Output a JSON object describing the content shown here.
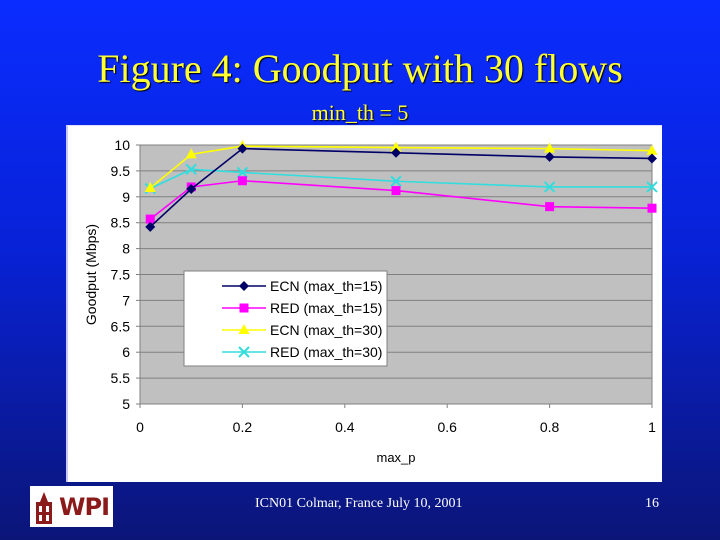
{
  "slide": {
    "title": "Figure 4: Goodput with 30 flows",
    "subtitle": "min_th = 5",
    "footer": "ICN01 Colmar, France  July 10, 2001",
    "page_number": "16",
    "logo_text": "WPI",
    "colors": {
      "background": "#0822d8",
      "title": "#ffff33",
      "plot_bg": "#c0c0c0"
    }
  },
  "chart_data": {
    "type": "line",
    "title": "",
    "xlabel": "max_p",
    "ylabel": "Goodput (Mbps)",
    "xlim": [
      0,
      1
    ],
    "ylim": [
      5,
      10
    ],
    "x_ticks": [
      "0",
      "0.2",
      "0.4",
      "0.6",
      "0.8",
      "1"
    ],
    "y_ticks": [
      "5",
      "5.5",
      "6",
      "6.5",
      "7",
      "7.5",
      "8",
      "8.5",
      "9",
      "9.5",
      "10"
    ],
    "grid": true,
    "legend_position": "inside-left-middle",
    "x": [
      0.02,
      0.1,
      0.2,
      0.5,
      0.8,
      1.0
    ],
    "series": [
      {
        "name": "ECN (max_th=15)",
        "color": "#000066",
        "marker": "diamond",
        "values": [
          8.42,
          9.15,
          9.93,
          9.85,
          9.77,
          9.74
        ]
      },
      {
        "name": "RED (max_th=15)",
        "color": "#ff00ff",
        "marker": "square",
        "values": [
          8.57,
          9.19,
          9.31,
          9.12,
          8.81,
          8.78
        ]
      },
      {
        "name": "ECN (max_th=30)",
        "color": "#ffff00",
        "marker": "triangle",
        "values": [
          9.17,
          9.82,
          9.98,
          9.95,
          9.93,
          9.89
        ]
      },
      {
        "name": "RED (max_th=30)",
        "color": "#33dddd",
        "marker": "x",
        "values": [
          9.16,
          9.53,
          9.47,
          9.3,
          9.19,
          9.19
        ]
      }
    ]
  }
}
